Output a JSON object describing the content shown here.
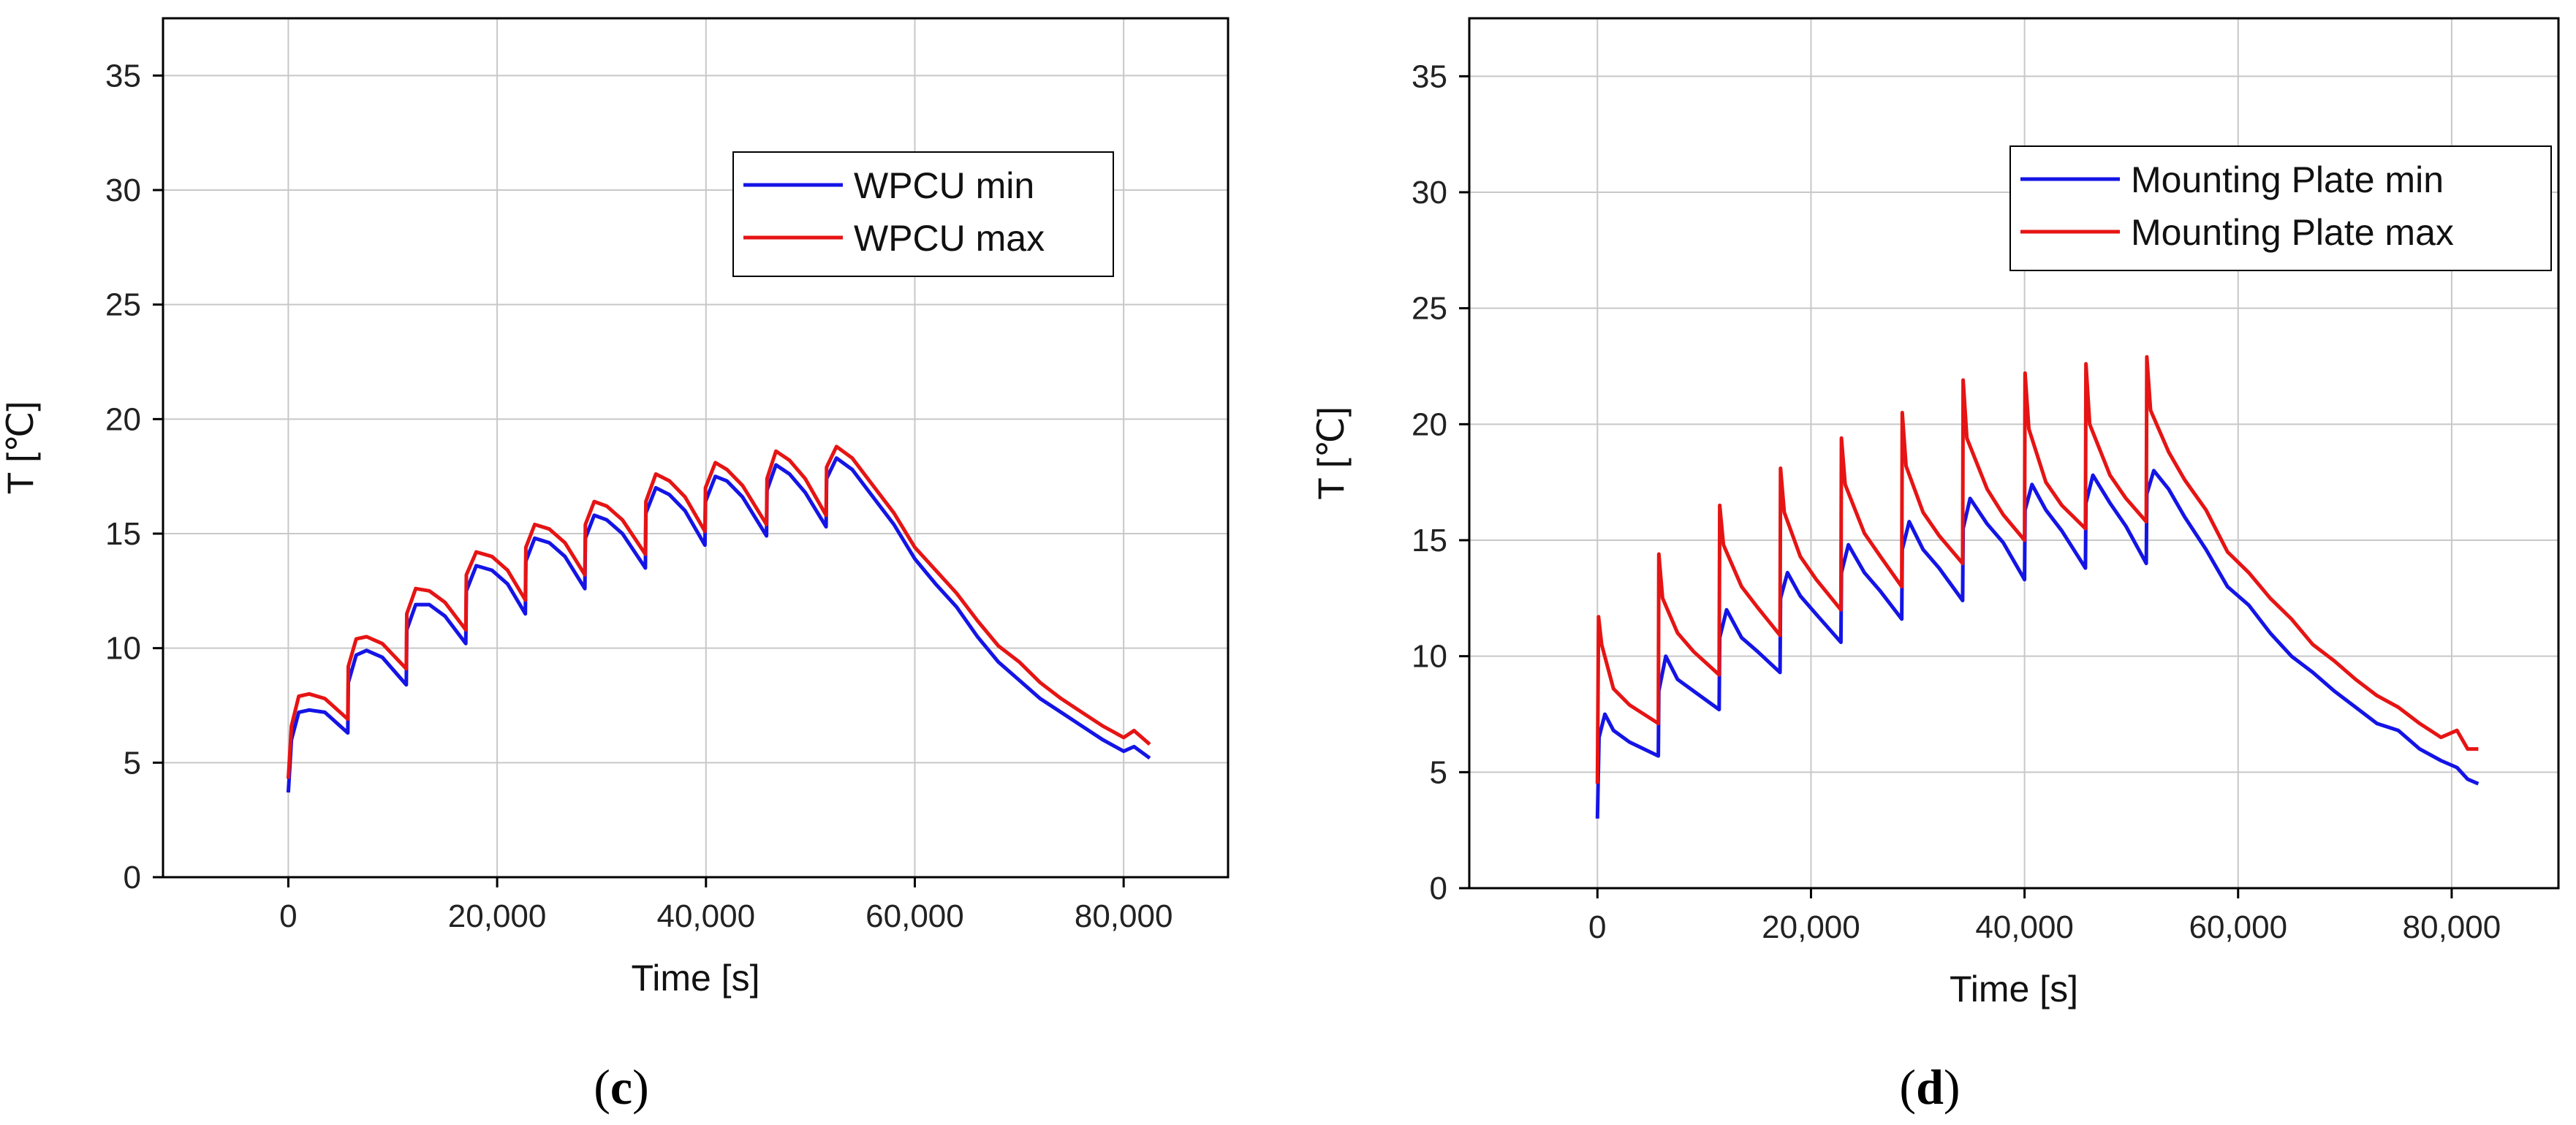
{
  "chart_data": [
    {
      "type": "line",
      "caption": "(c)",
      "caption_parts": [
        "(",
        "c",
        ")"
      ],
      "title": "",
      "xlabel": "Time [s]",
      "ylabel": "T [℃]",
      "xlim": [
        -12000,
        90000
      ],
      "ylim": [
        0,
        37.5
      ],
      "xticks": [
        0,
        20000,
        40000,
        60000,
        80000
      ],
      "xtick_labels": [
        "0",
        "20,000",
        "40,000",
        "60,000",
        "80,000"
      ],
      "yticks": [
        0,
        5,
        10,
        15,
        20,
        25,
        30,
        35
      ],
      "ytick_labels": [
        "0",
        "5",
        "10",
        "15",
        "20",
        "25",
        "30",
        "35"
      ],
      "grid": true,
      "legend_position": "upper-right",
      "series": [
        {
          "name": "WPCU min",
          "color": "#1414e6",
          "x": [
            0,
            300,
            1000,
            2000,
            3500,
            5700,
            5750,
            6500,
            7500,
            9000,
            11300,
            11350,
            12200,
            13500,
            15000,
            17000,
            17050,
            18000,
            19500,
            21000,
            22700,
            22750,
            23600,
            25000,
            26500,
            28400,
            28450,
            29300,
            30500,
            32000,
            34200,
            34250,
            35200,
            36500,
            38000,
            39900,
            39950,
            40900,
            42000,
            43500,
            45800,
            45850,
            46700,
            48000,
            49500,
            51500,
            51550,
            52500,
            54000,
            56000,
            58000,
            60000,
            62000,
            64000,
            66000,
            68000,
            70000,
            72000,
            74000,
            76000,
            78000,
            80000,
            81000,
            82500
          ],
          "y": [
            3.7,
            6.0,
            7.2,
            7.3,
            7.2,
            6.3,
            8.5,
            9.7,
            9.9,
            9.6,
            8.4,
            10.8,
            11.9,
            11.9,
            11.4,
            10.2,
            12.5,
            13.6,
            13.4,
            12.8,
            11.5,
            13.8,
            14.8,
            14.6,
            14.0,
            12.6,
            14.8,
            15.8,
            15.6,
            15.0,
            13.5,
            15.9,
            17.0,
            16.7,
            16.0,
            14.5,
            16.4,
            17.5,
            17.3,
            16.6,
            14.9,
            16.9,
            18.0,
            17.6,
            16.8,
            15.3,
            17.4,
            18.3,
            17.8,
            16.6,
            15.4,
            13.9,
            12.8,
            11.8,
            10.5,
            9.4,
            8.6,
            7.8,
            7.2,
            6.6,
            6.0,
            5.5,
            5.7,
            5.2
          ]
        },
        {
          "name": "WPCU max",
          "color": "#e61414",
          "x": [
            0,
            300,
            1000,
            2000,
            3500,
            5700,
            5750,
            6500,
            7500,
            9000,
            11300,
            11350,
            12200,
            13500,
            15000,
            17000,
            17050,
            18000,
            19500,
            21000,
            22700,
            22750,
            23600,
            25000,
            26500,
            28400,
            28450,
            29300,
            30500,
            32000,
            34200,
            34250,
            35200,
            36500,
            38000,
            39900,
            39950,
            40900,
            42000,
            43500,
            45800,
            45850,
            46700,
            48000,
            49500,
            51500,
            51550,
            52500,
            54000,
            56000,
            58000,
            60000,
            62000,
            64000,
            66000,
            68000,
            70000,
            72000,
            74000,
            76000,
            78000,
            80000,
            81000,
            82500
          ],
          "y": [
            4.3,
            6.6,
            7.9,
            8.0,
            7.8,
            6.9,
            9.2,
            10.4,
            10.5,
            10.2,
            9.1,
            11.5,
            12.6,
            12.5,
            12.0,
            10.8,
            13.2,
            14.2,
            14.0,
            13.4,
            12.1,
            14.4,
            15.4,
            15.2,
            14.6,
            13.2,
            15.4,
            16.4,
            16.2,
            15.6,
            14.1,
            16.4,
            17.6,
            17.3,
            16.6,
            15.1,
            17.0,
            18.1,
            17.8,
            17.1,
            15.4,
            17.4,
            18.6,
            18.2,
            17.4,
            15.8,
            17.9,
            18.8,
            18.3,
            17.1,
            15.9,
            14.4,
            13.4,
            12.4,
            11.2,
            10.1,
            9.4,
            8.5,
            7.8,
            7.2,
            6.6,
            6.1,
            6.4,
            5.8
          ]
        }
      ]
    },
    {
      "type": "line",
      "caption": "(d)",
      "caption_parts": [
        "(",
        "d",
        ")"
      ],
      "title": "",
      "xlabel": "Time [s]",
      "ylabel": "T [℃]",
      "xlim": [
        -12000,
        90000
      ],
      "ylim": [
        0,
        37.5
      ],
      "xticks": [
        0,
        20000,
        40000,
        60000,
        80000
      ],
      "xtick_labels": [
        "0",
        "20,000",
        "40,000",
        "60,000",
        "80,000"
      ],
      "yticks": [
        0,
        5,
        10,
        15,
        20,
        25,
        30,
        35
      ],
      "ytick_labels": [
        "0",
        "5",
        "10",
        "15",
        "20",
        "25",
        "30",
        "35"
      ],
      "grid": true,
      "legend_position": "upper-right",
      "series": [
        {
          "name": "Mounting Plate min",
          "color": "#1414e6",
          "x": [
            0,
            150,
            700,
            1500,
            3000,
            5700,
            5750,
            6400,
            7500,
            9000,
            11400,
            11450,
            12100,
            13500,
            15000,
            17100,
            17150,
            17800,
            19000,
            20500,
            22800,
            22850,
            23500,
            25000,
            26500,
            28500,
            28550,
            29200,
            30500,
            32000,
            34200,
            34250,
            34900,
            36500,
            38000,
            40000,
            40050,
            40700,
            42000,
            43500,
            45700,
            45750,
            46400,
            48000,
            49500,
            51400,
            51450,
            52100,
            53500,
            55000,
            57000,
            59000,
            61000,
            63000,
            65000,
            67000,
            69000,
            71000,
            73000,
            75000,
            77000,
            79000,
            80500,
            81500,
            82500
          ],
          "y": [
            3.0,
            6.5,
            7.5,
            6.8,
            6.3,
            5.7,
            8.5,
            10.0,
            9.0,
            8.5,
            7.7,
            10.8,
            12.0,
            10.8,
            10.2,
            9.3,
            12.5,
            13.6,
            12.6,
            11.8,
            10.6,
            13.6,
            14.8,
            13.6,
            12.8,
            11.6,
            14.6,
            15.8,
            14.6,
            13.8,
            12.4,
            15.5,
            16.8,
            15.7,
            14.9,
            13.3,
            16.3,
            17.4,
            16.3,
            15.4,
            13.8,
            16.6,
            17.8,
            16.6,
            15.6,
            14.0,
            17.0,
            18.0,
            17.2,
            16.0,
            14.6,
            13.0,
            12.2,
            11.0,
            10.0,
            9.3,
            8.5,
            7.8,
            7.1,
            6.8,
            6.0,
            5.5,
            5.2,
            4.7,
            4.5
          ]
        },
        {
          "name": "Mounting Plate max",
          "color": "#e61414",
          "x": [
            0,
            100,
            400,
            1500,
            3000,
            5700,
            5750,
            6100,
            7500,
            9000,
            11400,
            11450,
            11800,
            13500,
            15000,
            17100,
            17150,
            17500,
            19000,
            20500,
            22800,
            22850,
            23200,
            25000,
            26500,
            28500,
            28550,
            28900,
            30500,
            32000,
            34200,
            34250,
            34600,
            36500,
            38000,
            40000,
            40050,
            40400,
            42000,
            43500,
            45700,
            45750,
            46100,
            48000,
            49500,
            51400,
            51450,
            51800,
            53500,
            55000,
            57000,
            59000,
            61000,
            63000,
            65000,
            67000,
            69000,
            71000,
            73000,
            75000,
            77000,
            79000,
            80500,
            81500,
            82500
          ],
          "y": [
            4.5,
            11.7,
            10.5,
            8.6,
            7.9,
            7.1,
            14.4,
            12.5,
            11.0,
            10.2,
            9.2,
            16.5,
            14.8,
            13.0,
            12.1,
            10.9,
            18.1,
            16.2,
            14.3,
            13.3,
            12.0,
            19.4,
            17.4,
            15.3,
            14.3,
            13.0,
            20.5,
            18.2,
            16.2,
            15.2,
            14.0,
            21.9,
            19.4,
            17.2,
            16.1,
            15.0,
            22.2,
            19.8,
            17.5,
            16.5,
            15.5,
            22.6,
            20.0,
            17.8,
            16.8,
            15.8,
            22.9,
            20.6,
            18.8,
            17.6,
            16.3,
            14.5,
            13.6,
            12.5,
            11.6,
            10.5,
            9.8,
            9.0,
            8.3,
            7.8,
            7.1,
            6.5,
            6.8,
            6.0,
            6.0
          ]
        }
      ]
    }
  ]
}
